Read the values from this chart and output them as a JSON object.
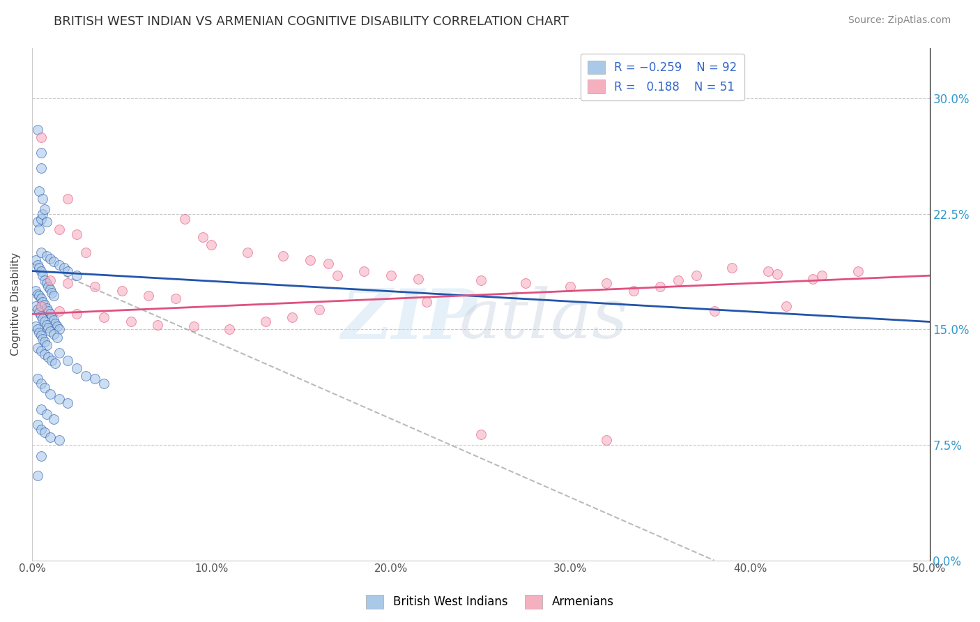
{
  "title": "BRITISH WEST INDIAN VS ARMENIAN COGNITIVE DISABILITY CORRELATION CHART",
  "source": "Source: ZipAtlas.com",
  "ylabel": "Cognitive Disability",
  "x_min": 0.0,
  "x_max": 0.5,
  "y_min": 0.0,
  "y_max": 0.333,
  "x_ticks": [
    0.0,
    0.1,
    0.2,
    0.3,
    0.4,
    0.5
  ],
  "y_ticks": [
    0.0,
    0.075,
    0.15,
    0.225,
    0.3
  ],
  "blue_color": "#aac8e8",
  "pink_color": "#f5b0c0",
  "blue_line_color": "#2255aa",
  "pink_line_color": "#e05080",
  "blue_scatter": [
    [
      0.003,
      0.28
    ],
    [
      0.005,
      0.265
    ],
    [
      0.005,
      0.255
    ],
    [
      0.004,
      0.24
    ],
    [
      0.006,
      0.235
    ],
    [
      0.003,
      0.22
    ],
    [
      0.005,
      0.222
    ],
    [
      0.006,
      0.225
    ],
    [
      0.007,
      0.228
    ],
    [
      0.008,
      0.22
    ],
    [
      0.004,
      0.215
    ],
    [
      0.002,
      0.195
    ],
    [
      0.003,
      0.192
    ],
    [
      0.004,
      0.19
    ],
    [
      0.005,
      0.188
    ],
    [
      0.006,
      0.185
    ],
    [
      0.007,
      0.182
    ],
    [
      0.008,
      0.18
    ],
    [
      0.009,
      0.178
    ],
    [
      0.01,
      0.176
    ],
    [
      0.011,
      0.174
    ],
    [
      0.012,
      0.172
    ],
    [
      0.002,
      0.175
    ],
    [
      0.003,
      0.173
    ],
    [
      0.004,
      0.172
    ],
    [
      0.005,
      0.17
    ],
    [
      0.006,
      0.168
    ],
    [
      0.007,
      0.166
    ],
    [
      0.008,
      0.164
    ],
    [
      0.009,
      0.162
    ],
    [
      0.01,
      0.16
    ],
    [
      0.011,
      0.158
    ],
    [
      0.012,
      0.156
    ],
    [
      0.013,
      0.154
    ],
    [
      0.014,
      0.152
    ],
    [
      0.015,
      0.15
    ],
    [
      0.002,
      0.165
    ],
    [
      0.003,
      0.163
    ],
    [
      0.004,
      0.161
    ],
    [
      0.005,
      0.159
    ],
    [
      0.006,
      0.157
    ],
    [
      0.007,
      0.155
    ],
    [
      0.008,
      0.153
    ],
    [
      0.009,
      0.151
    ],
    [
      0.01,
      0.149
    ],
    [
      0.012,
      0.147
    ],
    [
      0.014,
      0.145
    ],
    [
      0.002,
      0.152
    ],
    [
      0.003,
      0.15
    ],
    [
      0.004,
      0.148
    ],
    [
      0.005,
      0.146
    ],
    [
      0.006,
      0.144
    ],
    [
      0.007,
      0.142
    ],
    [
      0.008,
      0.14
    ],
    [
      0.003,
      0.138
    ],
    [
      0.005,
      0.136
    ],
    [
      0.007,
      0.134
    ],
    [
      0.009,
      0.132
    ],
    [
      0.011,
      0.13
    ],
    [
      0.013,
      0.128
    ],
    [
      0.015,
      0.135
    ],
    [
      0.02,
      0.13
    ],
    [
      0.025,
      0.125
    ],
    [
      0.03,
      0.12
    ],
    [
      0.035,
      0.118
    ],
    [
      0.04,
      0.115
    ],
    [
      0.003,
      0.118
    ],
    [
      0.005,
      0.115
    ],
    [
      0.007,
      0.112
    ],
    [
      0.01,
      0.108
    ],
    [
      0.015,
      0.105
    ],
    [
      0.02,
      0.102
    ],
    [
      0.005,
      0.098
    ],
    [
      0.008,
      0.095
    ],
    [
      0.012,
      0.092
    ],
    [
      0.003,
      0.088
    ],
    [
      0.005,
      0.085
    ],
    [
      0.007,
      0.083
    ],
    [
      0.01,
      0.08
    ],
    [
      0.015,
      0.078
    ],
    [
      0.005,
      0.068
    ],
    [
      0.003,
      0.055
    ],
    [
      0.005,
      0.2
    ],
    [
      0.008,
      0.198
    ],
    [
      0.01,
      0.196
    ],
    [
      0.012,
      0.194
    ],
    [
      0.015,
      0.192
    ],
    [
      0.018,
      0.19
    ],
    [
      0.02,
      0.188
    ],
    [
      0.025,
      0.185
    ]
  ],
  "pink_scatter": [
    [
      0.005,
      0.275
    ],
    [
      0.02,
      0.235
    ],
    [
      0.015,
      0.215
    ],
    [
      0.025,
      0.212
    ],
    [
      0.03,
      0.2
    ],
    [
      0.085,
      0.222
    ],
    [
      0.095,
      0.21
    ],
    [
      0.1,
      0.205
    ],
    [
      0.12,
      0.2
    ],
    [
      0.14,
      0.198
    ],
    [
      0.155,
      0.195
    ],
    [
      0.165,
      0.193
    ],
    [
      0.01,
      0.182
    ],
    [
      0.02,
      0.18
    ],
    [
      0.035,
      0.178
    ],
    [
      0.05,
      0.175
    ],
    [
      0.065,
      0.172
    ],
    [
      0.08,
      0.17
    ],
    [
      0.17,
      0.185
    ],
    [
      0.185,
      0.188
    ],
    [
      0.2,
      0.185
    ],
    [
      0.215,
      0.183
    ],
    [
      0.25,
      0.182
    ],
    [
      0.275,
      0.18
    ],
    [
      0.3,
      0.178
    ],
    [
      0.32,
      0.18
    ],
    [
      0.335,
      0.175
    ],
    [
      0.35,
      0.178
    ],
    [
      0.36,
      0.182
    ],
    [
      0.37,
      0.185
    ],
    [
      0.39,
      0.19
    ],
    [
      0.41,
      0.188
    ],
    [
      0.415,
      0.186
    ],
    [
      0.435,
      0.183
    ],
    [
      0.44,
      0.185
    ],
    [
      0.46,
      0.188
    ],
    [
      0.005,
      0.165
    ],
    [
      0.015,
      0.162
    ],
    [
      0.025,
      0.16
    ],
    [
      0.04,
      0.158
    ],
    [
      0.055,
      0.155
    ],
    [
      0.07,
      0.153
    ],
    [
      0.09,
      0.152
    ],
    [
      0.11,
      0.15
    ],
    [
      0.13,
      0.155
    ],
    [
      0.145,
      0.158
    ],
    [
      0.16,
      0.163
    ],
    [
      0.22,
      0.168
    ],
    [
      0.38,
      0.162
    ],
    [
      0.42,
      0.165
    ],
    [
      0.25,
      0.082
    ],
    [
      0.32,
      0.078
    ]
  ],
  "blue_trend": [
    0.0,
    0.5,
    0.188,
    0.155
  ],
  "pink_trend": [
    0.0,
    0.5,
    0.16,
    0.185
  ],
  "dash_line": [
    0.018,
    0.185,
    0.38,
    0.0
  ]
}
